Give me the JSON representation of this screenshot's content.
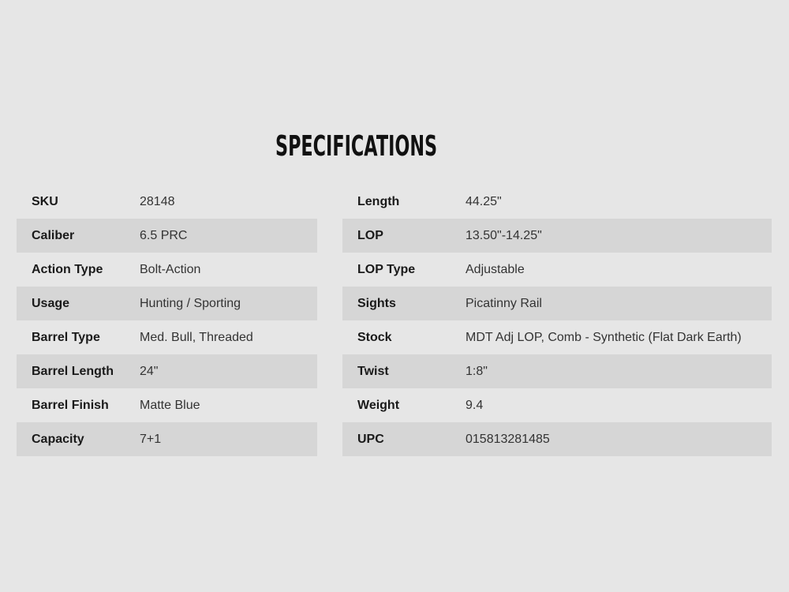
{
  "title": "SPECIFICATIONS",
  "colors": {
    "background": "#e6e6e6",
    "stripe": "#d6d6d6"
  },
  "left_table": [
    {
      "label": "SKU",
      "value": "28148"
    },
    {
      "label": "Caliber",
      "value": "6.5 PRC"
    },
    {
      "label": "Action Type",
      "value": "Bolt-Action"
    },
    {
      "label": "Usage",
      "value": "Hunting / Sporting"
    },
    {
      "label": "Barrel Type",
      "value": "Med. Bull, Threaded"
    },
    {
      "label": "Barrel Length",
      "value": "24\""
    },
    {
      "label": "Barrel Finish",
      "value": "Matte Blue"
    },
    {
      "label": "Capacity",
      "value": "7+1"
    }
  ],
  "right_table": [
    {
      "label": "Length",
      "value": "44.25\""
    },
    {
      "label": "LOP",
      "value": "13.50\"-14.25\""
    },
    {
      "label": "LOP Type",
      "value": "Adjustable"
    },
    {
      "label": "Sights",
      "value": "Picatinny Rail"
    },
    {
      "label": "Stock",
      "value": "MDT Adj LOP, Comb - Synthetic (Flat Dark Earth)"
    },
    {
      "label": "Twist",
      "value": "1:8\""
    },
    {
      "label": "Weight",
      "value": "9.4"
    },
    {
      "label": "UPC",
      "value": "015813281485"
    }
  ]
}
